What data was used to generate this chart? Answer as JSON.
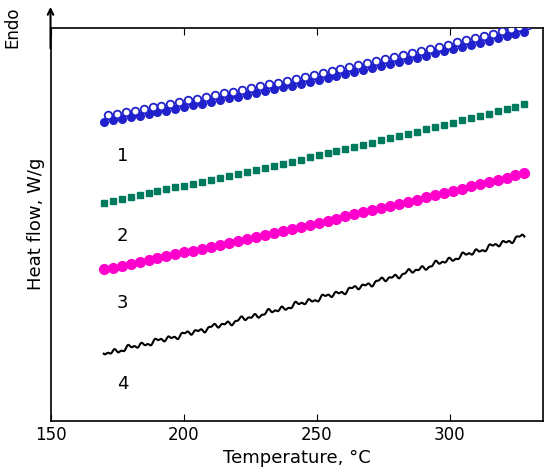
{
  "title": "",
  "xlabel": "Temperature, °C",
  "ylabel": "Heat flow, W/g",
  "endo_label": "Endo",
  "xlim": [
    150,
    335
  ],
  "ylim": [
    0,
    1
  ],
  "x_ticks": [
    150,
    200,
    250,
    300
  ],
  "curve_labels": [
    "1",
    "2",
    "3",
    "4"
  ],
  "curve1_color": "#2020cc",
  "curve2_color": "#007a5e",
  "curve3_color": "#ff00cc",
  "curve4_color": "#000000",
  "font_size_axis": 13,
  "font_size_label": 13,
  "font_size_tick": 12
}
